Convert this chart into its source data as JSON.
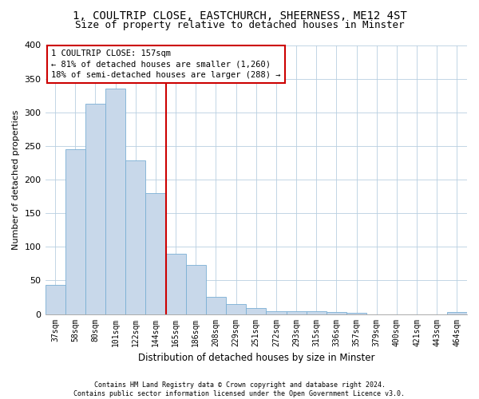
{
  "title_line1": "1, COULTRIP CLOSE, EASTCHURCH, SHEERNESS, ME12 4ST",
  "title_line2": "Size of property relative to detached houses in Minster",
  "xlabel": "Distribution of detached houses by size in Minster",
  "ylabel": "Number of detached properties",
  "footnote": "Contains HM Land Registry data © Crown copyright and database right 2024.\nContains public sector information licensed under the Open Government Licence v3.0.",
  "bar_labels": [
    "37sqm",
    "58sqm",
    "80sqm",
    "101sqm",
    "122sqm",
    "144sqm",
    "165sqm",
    "186sqm",
    "208sqm",
    "229sqm",
    "251sqm",
    "272sqm",
    "293sqm",
    "315sqm",
    "336sqm",
    "357sqm",
    "379sqm",
    "400sqm",
    "421sqm",
    "443sqm",
    "464sqm"
  ],
  "bar_values": [
    43,
    245,
    313,
    335,
    228,
    180,
    90,
    73,
    25,
    15,
    9,
    4,
    4,
    4,
    3,
    2,
    0,
    0,
    0,
    0,
    3
  ],
  "bar_color": "#c8d8ea",
  "bar_edge_color": "#7aafd4",
  "vline_x_index": 6,
  "vline_color": "#cc0000",
  "annotation_text": "1 COULTRIP CLOSE: 157sqm\n← 81% of detached houses are smaller (1,260)\n18% of semi-detached houses are larger (288) →",
  "ylim": [
    0,
    400
  ],
  "yticks": [
    0,
    50,
    100,
    150,
    200,
    250,
    300,
    350,
    400
  ],
  "grid_color": "#b8cfe0",
  "background_color": "#ffffff",
  "title_fontsize": 10,
  "subtitle_fontsize": 9,
  "ylabel_fontsize": 8,
  "xlabel_fontsize": 8.5,
  "tick_fontsize": 7,
  "annotation_fontsize": 7.5,
  "footnote_fontsize": 6
}
